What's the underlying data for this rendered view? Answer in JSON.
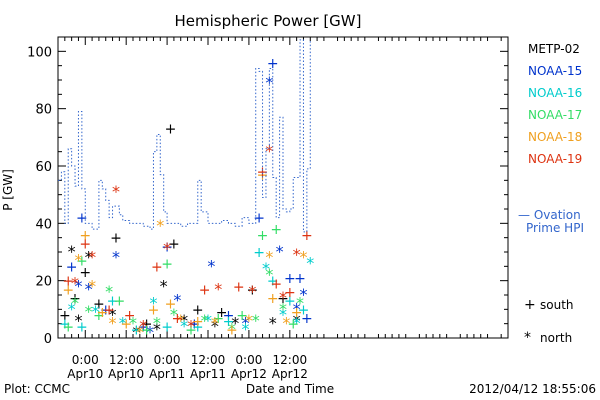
{
  "chart_data": {
    "type": "scatter",
    "title": "Hemispheric Power [GW]",
    "ylabel": "P [GW]",
    "xlabel": "Date and Time",
    "ylim": [
      0,
      105
    ],
    "xlim": [
      -8,
      124
    ],
    "x_unit": "hours since 2012-04-10 00:00 UT",
    "y_ticks": [
      0,
      20,
      40,
      60,
      80,
      100
    ],
    "x_ticks": [
      {
        "x": 0,
        "top": "0:00",
        "bottom": "Apr10"
      },
      {
        "x": 12,
        "top": "12:00",
        "bottom": "Apr10"
      },
      {
        "x": 24,
        "top": "0:00",
        "bottom": "Apr11"
      },
      {
        "x": 36,
        "top": "12:00",
        "bottom": "Apr11"
      },
      {
        "x": 48,
        "top": "0:00",
        "bottom": "Apr12"
      },
      {
        "x": 60,
        "top": "12:00",
        "bottom": "Apr12"
      }
    ],
    "legend_position": "right",
    "series": [
      {
        "name": "METP-02",
        "color": "#000000",
        "values": [
          [
            -6,
            8
          ],
          [
            -4,
            30
          ],
          [
            -3,
            14
          ],
          [
            -2,
            6
          ],
          [
            0,
            23
          ],
          [
            1,
            28
          ],
          [
            4,
            12
          ],
          [
            8,
            8
          ],
          [
            9,
            35
          ],
          [
            15,
            2
          ],
          [
            18,
            5
          ],
          [
            21,
            3
          ],
          [
            25,
            73
          ],
          [
            23,
            18
          ],
          [
            26,
            33
          ],
          [
            29,
            6
          ],
          [
            33,
            10
          ],
          [
            38,
            4
          ],
          [
            40,
            9
          ],
          [
            44,
            5
          ],
          [
            49,
            17
          ],
          [
            55,
            5
          ],
          [
            58,
            14
          ],
          [
            62,
            6
          ]
        ]
      },
      {
        "name": "NOAA-15",
        "color": "#0033cc",
        "values": [
          [
            -4,
            25
          ],
          [
            -2,
            18
          ],
          [
            -1,
            42
          ],
          [
            1,
            17
          ],
          [
            6,
            10
          ],
          [
            9,
            28
          ],
          [
            17,
            4
          ],
          [
            19,
            2
          ],
          [
            24,
            32
          ],
          [
            27,
            13
          ],
          [
            32,
            5
          ],
          [
            37,
            25
          ],
          [
            42,
            8
          ],
          [
            47,
            5
          ],
          [
            51,
            42
          ],
          [
            54,
            89
          ],
          [
            55,
            96
          ],
          [
            57,
            30
          ],
          [
            60,
            21
          ],
          [
            62,
            10
          ],
          [
            63,
            21
          ],
          [
            64,
            15
          ],
          [
            65,
            7
          ]
        ]
      },
      {
        "name": "NOAA-16",
        "color": "#00cccc",
        "values": [
          [
            -6,
            5
          ],
          [
            -4,
            10
          ],
          [
            -1,
            4
          ],
          [
            3,
            9
          ],
          [
            8,
            13
          ],
          [
            11,
            5
          ],
          [
            15,
            3
          ],
          [
            20,
            12
          ],
          [
            24,
            4
          ],
          [
            29,
            4
          ],
          [
            33,
            4
          ],
          [
            36,
            6
          ],
          [
            42,
            6
          ],
          [
            47,
            3
          ],
          [
            51,
            30
          ],
          [
            53,
            24
          ],
          [
            55,
            20
          ],
          [
            58,
            8
          ],
          [
            60,
            13
          ],
          [
            62,
            5
          ],
          [
            64,
            10
          ],
          [
            66,
            26
          ]
        ]
      },
      {
        "name": "NOAA-17",
        "color": "#33dd66",
        "values": [
          [
            -5,
            4
          ],
          [
            -3,
            12
          ],
          [
            -1,
            27
          ],
          [
            1,
            9
          ],
          [
            4,
            8
          ],
          [
            7,
            16
          ],
          [
            10,
            13
          ],
          [
            14,
            5
          ],
          [
            18,
            3
          ],
          [
            21,
            5
          ],
          [
            24,
            26
          ],
          [
            26,
            8
          ],
          [
            31,
            3
          ],
          [
            35,
            6
          ],
          [
            39,
            7
          ],
          [
            43,
            3
          ],
          [
            46,
            8
          ],
          [
            50,
            6
          ],
          [
            52,
            36
          ],
          [
            54,
            22
          ],
          [
            56,
            38
          ],
          [
            58,
            10
          ],
          [
            61,
            5
          ],
          [
            63,
            12
          ]
        ]
      },
      {
        "name": "NOAA-18",
        "color": "#f0a020",
        "values": [
          [
            -5,
            17
          ],
          [
            -2,
            27
          ],
          [
            0,
            36
          ],
          [
            2,
            18
          ],
          [
            5,
            9
          ],
          [
            8,
            5
          ],
          [
            12,
            5
          ],
          [
            16,
            2
          ],
          [
            20,
            10
          ],
          [
            22,
            39
          ],
          [
            25,
            12
          ],
          [
            28,
            6
          ],
          [
            33,
            6
          ],
          [
            38,
            5
          ],
          [
            43,
            3
          ],
          [
            48,
            6
          ],
          [
            52,
            57
          ],
          [
            54,
            28
          ],
          [
            55,
            14
          ],
          [
            59,
            5
          ],
          [
            62,
            9
          ],
          [
            64,
            28
          ]
        ]
      },
      {
        "name": "NOAA-19",
        "color": "#dd3311",
        "values": [
          [
            -5,
            20
          ],
          [
            -3,
            19
          ],
          [
            0,
            33
          ],
          [
            2,
            28
          ],
          [
            7,
            10
          ],
          [
            9,
            51
          ],
          [
            13,
            8
          ],
          [
            17,
            4
          ],
          [
            21,
            25
          ],
          [
            24,
            31
          ],
          [
            27,
            7
          ],
          [
            31,
            4
          ],
          [
            35,
            17
          ],
          [
            39,
            17
          ],
          [
            45,
            18
          ],
          [
            49,
            16
          ],
          [
            52,
            58
          ],
          [
            54,
            65
          ],
          [
            56,
            19
          ],
          [
            58,
            14
          ],
          [
            60,
            16
          ],
          [
            62,
            29
          ],
          [
            65,
            36
          ]
        ]
      },
      {
        "name": "Ovation Prime HPI",
        "color": "#3366cc",
        "values": [
          [
            -8,
            55
          ],
          [
            -7,
            58
          ],
          [
            -6,
            40
          ],
          [
            -5,
            66
          ],
          [
            -4,
            60
          ],
          [
            -3,
            53
          ],
          [
            -2,
            79
          ],
          [
            -1,
            52
          ],
          [
            0,
            40
          ],
          [
            2,
            38
          ],
          [
            4,
            55
          ],
          [
            5,
            52
          ],
          [
            6,
            48
          ],
          [
            7,
            42
          ],
          [
            8,
            46
          ],
          [
            10,
            43
          ],
          [
            11,
            41
          ],
          [
            13,
            40
          ],
          [
            15,
            40
          ],
          [
            17,
            39
          ],
          [
            19,
            38
          ],
          [
            20,
            65
          ],
          [
            21,
            71
          ],
          [
            22,
            57
          ],
          [
            23,
            44
          ],
          [
            24,
            40
          ],
          [
            26,
            40
          ],
          [
            28,
            39
          ],
          [
            30,
            40
          ],
          [
            32,
            40
          ],
          [
            33,
            55
          ],
          [
            34,
            44
          ],
          [
            36,
            40
          ],
          [
            38,
            40
          ],
          [
            40,
            41
          ],
          [
            42,
            40
          ],
          [
            44,
            39
          ],
          [
            46,
            42
          ],
          [
            48,
            40
          ],
          [
            50,
            94
          ],
          [
            51,
            93
          ],
          [
            52,
            49
          ],
          [
            53,
            66
          ],
          [
            54,
            94
          ],
          [
            55,
            56
          ],
          [
            56,
            42
          ],
          [
            57,
            77
          ],
          [
            58,
            45
          ],
          [
            59,
            44
          ],
          [
            60,
            45
          ],
          [
            61,
            56
          ],
          [
            62,
            56
          ],
          [
            63,
            104
          ],
          [
            64,
            37
          ],
          [
            65,
            59
          ],
          [
            66,
            104
          ]
        ]
      }
    ],
    "footer_left": "Plot: CCMC",
    "footer_right": "2012/04/12 18:55:06",
    "marker_legend": [
      {
        "glyph": "+",
        "label": "south"
      },
      {
        "glyph": "*",
        "label": "north"
      }
    ],
    "hpi_legend": {
      "line1": "— Ovation",
      "line2": "Prime HPI"
    }
  }
}
